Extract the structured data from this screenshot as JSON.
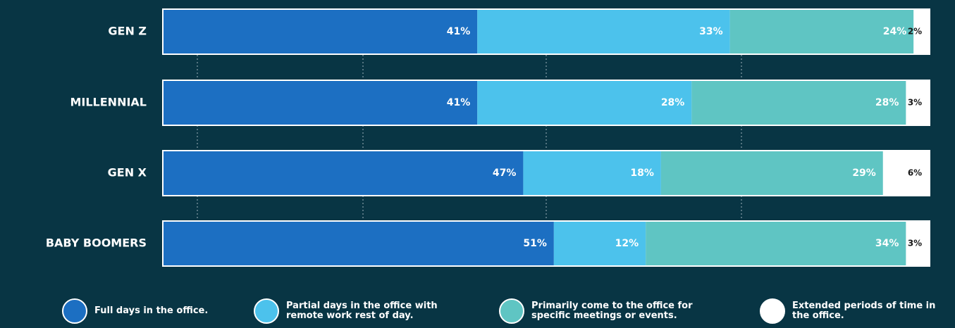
{
  "chart_data": {
    "type": "stacked-bar",
    "categories": [
      "GEN Z",
      "MILLENNIAL",
      "GEN X",
      "BABY BOOMERS"
    ],
    "xlim": [
      0,
      100
    ],
    "series": [
      {
        "name": "Full days in the office.",
        "color": "#1c6fc2",
        "values": [
          41,
          41,
          47,
          51
        ],
        "value_labels": [
          "41%",
          "41%",
          "47%",
          "51%"
        ]
      },
      {
        "name": "Partial days in the office with remote work rest of day.",
        "color": "#4cc2ec",
        "values": [
          33,
          28,
          18,
          12
        ],
        "value_labels": [
          "33%",
          "28%",
          "18%",
          "12%"
        ]
      },
      {
        "name": "Primarily come to the office for specific meetings or events.",
        "color": "#5fc5c3",
        "values": [
          24,
          28,
          29,
          34
        ],
        "value_labels": [
          "24%",
          "28%",
          "29%",
          "34%"
        ]
      },
      {
        "name": "Extended periods of time in the office.",
        "color": "#ffffff",
        "values": [
          2,
          3,
          6,
          3
        ],
        "value_labels": [
          "2%",
          "3%",
          "6%",
          "3%"
        ]
      }
    ]
  }
}
